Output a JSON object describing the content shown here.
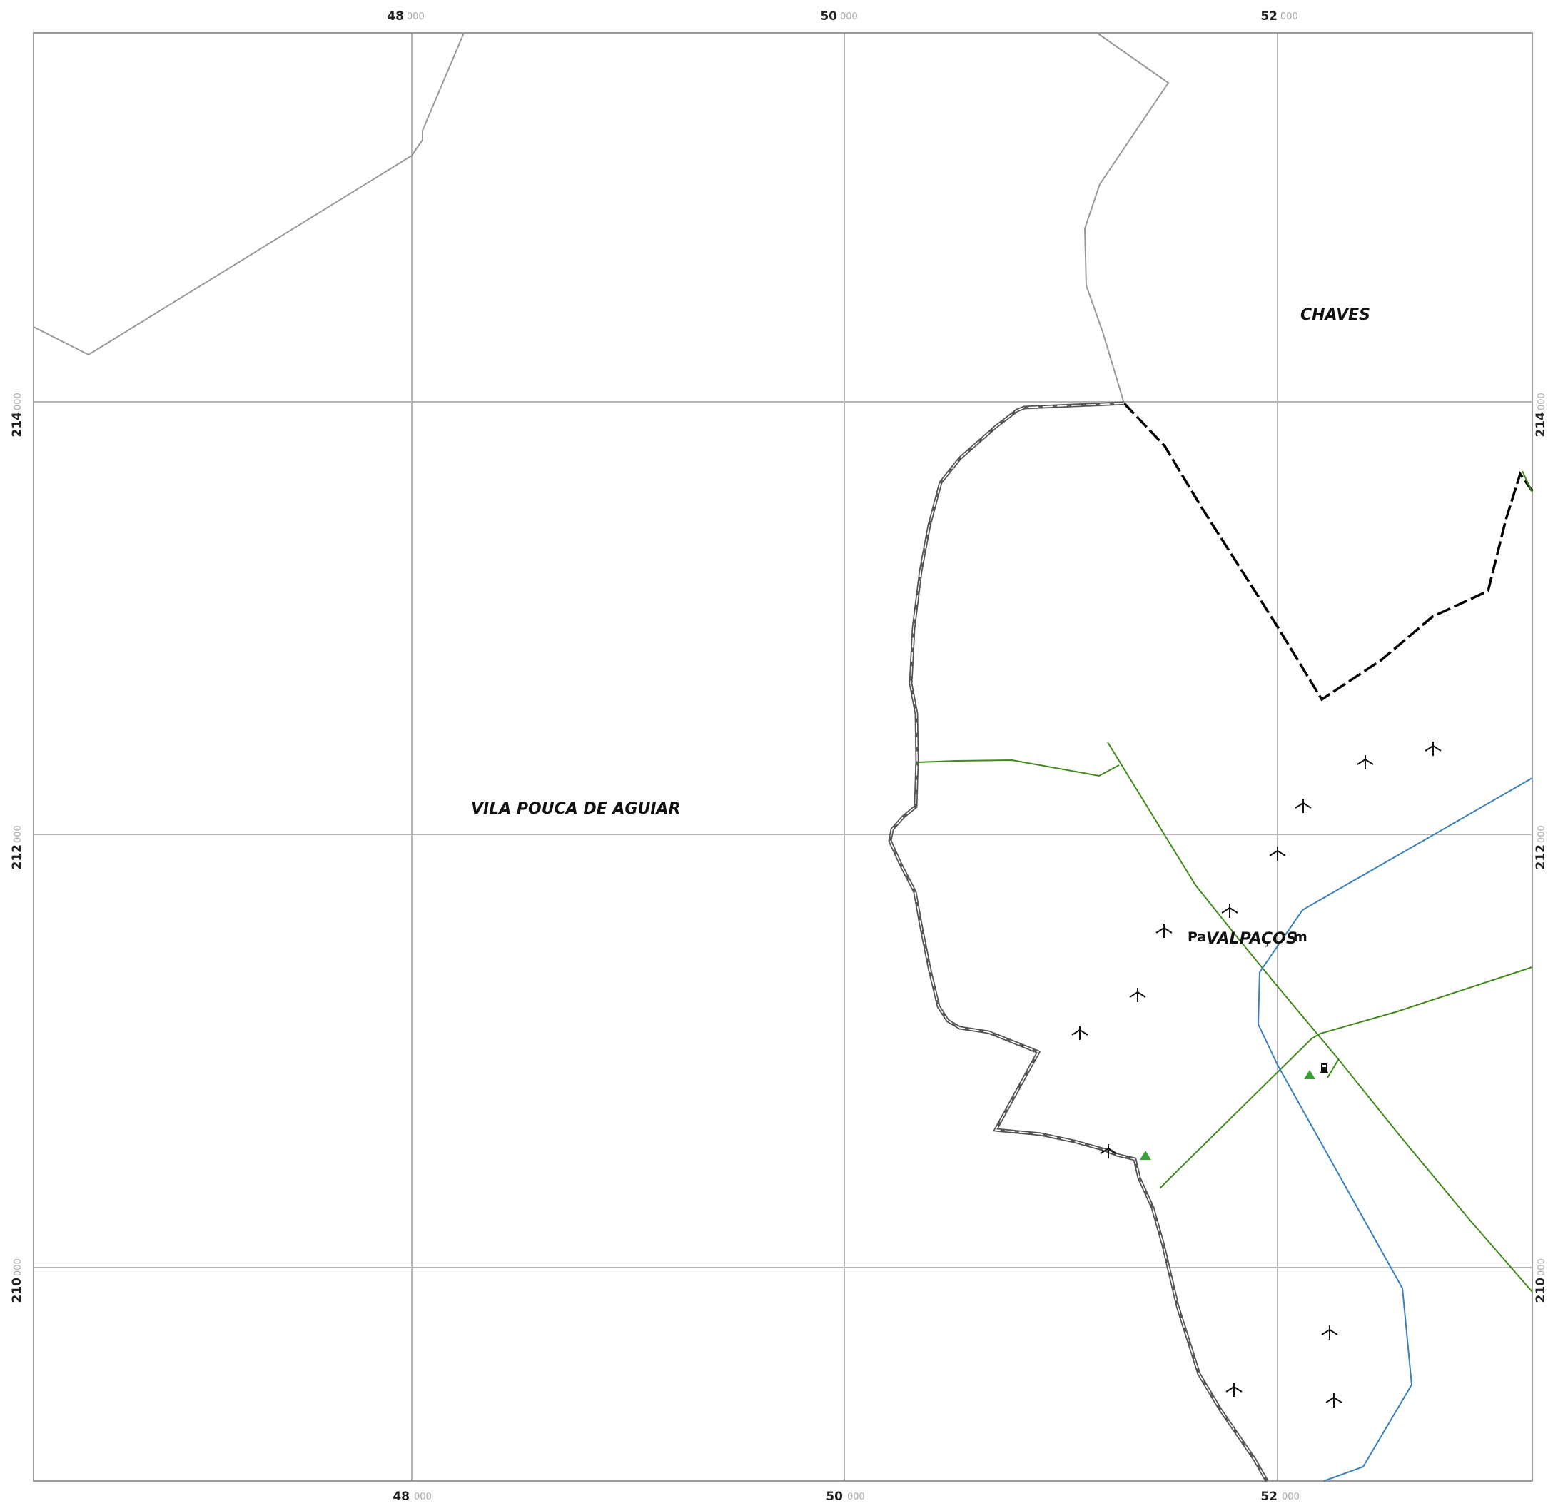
{
  "map": {
    "grid": {
      "x_ticks": [
        {
          "major": "48",
          "minor": "000"
        },
        {
          "major": "50",
          "minor": "000"
        },
        {
          "major": "52",
          "minor": "000"
        }
      ],
      "y_ticks": [
        {
          "major": "214",
          "minor": "000"
        },
        {
          "major": "212",
          "minor": "000"
        },
        {
          "major": "210",
          "minor": "000"
        }
      ]
    },
    "labels": {
      "chaves": "CHAVES",
      "vila_pouca": "VILA POUCA DE AGUIAR",
      "valpacos": "VALPAÇOS",
      "place_left": "Pa",
      "place_right": "m"
    },
    "colors": {
      "grid": "#b5b5b5",
      "frame": "#9a9a9a",
      "municipal_boundary": "#999999",
      "district_boundary": "#000000",
      "road_green": "#3f8a1a",
      "river_blue": "#3a7fc0",
      "marker_green": "#3aa03a"
    },
    "symbols": {
      "wind_turbine": "wind-turbine-icon",
      "geodetic_point": "triangle-icon",
      "fuel": "fuel-pump-icon"
    }
  }
}
